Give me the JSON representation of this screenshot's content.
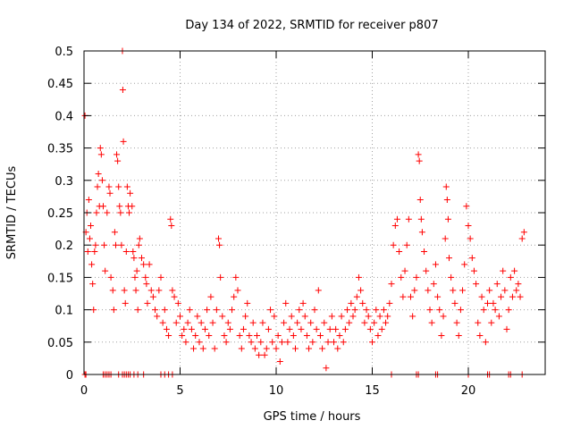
{
  "chart_data": {
    "type": "scatter",
    "title": "Day 134 of 2022, SRMTID for receiver p807",
    "xlabel": "GPS time / hours",
    "ylabel": "SRMTID / TECUs",
    "xlim": [
      0,
      24
    ],
    "ylim": [
      0,
      0.5
    ],
    "x_ticks": [
      0,
      5,
      10,
      15,
      20
    ],
    "y_ticks": [
      0,
      0.05,
      0.1,
      0.15,
      0.2,
      0.25,
      0.3,
      0.35,
      0.4,
      0.45,
      0.5
    ],
    "x_tick_labels": [
      "0",
      "5",
      "10",
      "15",
      "20"
    ],
    "y_tick_labels": [
      "0",
      "0.05",
      "0.1",
      "0.15",
      "0.2",
      "0.25",
      "0.3",
      "0.35",
      "0.4",
      "0.45",
      "0.5"
    ],
    "grid": true,
    "marker": "+",
    "color": "#ff0000",
    "series": [
      {
        "name": "SRMTID",
        "points": [
          [
            0.05,
            0.4
          ],
          [
            0.1,
            0.22
          ],
          [
            0.15,
            0.25
          ],
          [
            0.2,
            0.19
          ],
          [
            0.25,
            0.27
          ],
          [
            0.3,
            0.21
          ],
          [
            0.35,
            0.23
          ],
          [
            0.4,
            0.17
          ],
          [
            0.45,
            0.14
          ],
          [
            0.5,
            0.1
          ],
          [
            0.55,
            0.19
          ],
          [
            0.6,
            0.2
          ],
          [
            0.65,
            0.25
          ],
          [
            0.7,
            0.29
          ],
          [
            0.75,
            0.31
          ],
          [
            0.8,
            0.26
          ],
          [
            0.85,
            0.35
          ],
          [
            0.9,
            0.34
          ],
          [
            0.95,
            0.3
          ],
          [
            1.0,
            0.26
          ],
          [
            1.05,
            0.2
          ],
          [
            1.1,
            0.16
          ],
          [
            1.2,
            0.25
          ],
          [
            1.3,
            0.29
          ],
          [
            1.35,
            0.28
          ],
          [
            1.4,
            0.15
          ],
          [
            1.5,
            0.13
          ],
          [
            1.55,
            0.1
          ],
          [
            1.6,
            0.22
          ],
          [
            1.65,
            0.2
          ],
          [
            1.7,
            0.34
          ],
          [
            1.75,
            0.33
          ],
          [
            1.8,
            0.29
          ],
          [
            1.85,
            0.26
          ],
          [
            1.9,
            0.25
          ],
          [
            1.95,
            0.2
          ],
          [
            2.0,
            0.5
          ],
          [
            2.02,
            0.44
          ],
          [
            2.05,
            0.36
          ],
          [
            2.1,
            0.13
          ],
          [
            2.15,
            0.11
          ],
          [
            2.2,
            0.19
          ],
          [
            2.25,
            0.29
          ],
          [
            2.3,
            0.26
          ],
          [
            2.35,
            0.25
          ],
          [
            2.4,
            0.28
          ],
          [
            2.5,
            0.26
          ],
          [
            2.55,
            0.19
          ],
          [
            2.6,
            0.18
          ],
          [
            2.65,
            0.15
          ],
          [
            2.7,
            0.13
          ],
          [
            2.75,
            0.16
          ],
          [
            2.8,
            0.1
          ],
          [
            2.85,
            0.2
          ],
          [
            2.9,
            0.21
          ],
          [
            3.0,
            0.18
          ],
          [
            3.1,
            0.17
          ],
          [
            3.2,
            0.15
          ],
          [
            3.25,
            0.14
          ],
          [
            3.3,
            0.11
          ],
          [
            3.4,
            0.17
          ],
          [
            3.5,
            0.13
          ],
          [
            3.6,
            0.12
          ],
          [
            3.7,
            0.1
          ],
          [
            3.8,
            0.09
          ],
          [
            3.9,
            0.13
          ],
          [
            4.0,
            0.15
          ],
          [
            4.1,
            0.08
          ],
          [
            4.2,
            0.1
          ],
          [
            4.3,
            0.07
          ],
          [
            4.4,
            0.06
          ],
          [
            4.5,
            0.24
          ],
          [
            4.55,
            0.23
          ],
          [
            4.6,
            0.13
          ],
          [
            4.7,
            0.12
          ],
          [
            4.8,
            0.08
          ],
          [
            4.9,
            0.11
          ],
          [
            5.0,
            0.09
          ],
          [
            5.1,
            0.06
          ],
          [
            5.2,
            0.07
          ],
          [
            5.3,
            0.05
          ],
          [
            5.4,
            0.08
          ],
          [
            5.5,
            0.1
          ],
          [
            5.6,
            0.07
          ],
          [
            5.7,
            0.04
          ],
          [
            5.8,
            0.06
          ],
          [
            5.9,
            0.09
          ],
          [
            6.0,
            0.05
          ],
          [
            6.1,
            0.08
          ],
          [
            6.2,
            0.04
          ],
          [
            6.3,
            0.07
          ],
          [
            6.4,
            0.1
          ],
          [
            6.5,
            0.06
          ],
          [
            6.6,
            0.12
          ],
          [
            6.7,
            0.08
          ],
          [
            6.8,
            0.04
          ],
          [
            6.9,
            0.1
          ],
          [
            7.0,
            0.21
          ],
          [
            7.05,
            0.2
          ],
          [
            7.1,
            0.15
          ],
          [
            7.2,
            0.09
          ],
          [
            7.3,
            0.06
          ],
          [
            7.4,
            0.05
          ],
          [
            7.5,
            0.08
          ],
          [
            7.6,
            0.07
          ],
          [
            7.7,
            0.1
          ],
          [
            7.8,
            0.12
          ],
          [
            7.9,
            0.15
          ],
          [
            8.0,
            0.13
          ],
          [
            8.1,
            0.06
          ],
          [
            8.2,
            0.04
          ],
          [
            8.3,
            0.07
          ],
          [
            8.4,
            0.09
          ],
          [
            8.5,
            0.11
          ],
          [
            8.6,
            0.06
          ],
          [
            8.7,
            0.05
          ],
          [
            8.8,
            0.08
          ],
          [
            8.9,
            0.04
          ],
          [
            9.0,
            0.06
          ],
          [
            9.1,
            0.03
          ],
          [
            9.2,
            0.05
          ],
          [
            9.3,
            0.08
          ],
          [
            9.4,
            0.03
          ],
          [
            9.5,
            0.04
          ],
          [
            9.6,
            0.07
          ],
          [
            9.7,
            0.1
          ],
          [
            9.8,
            0.05
          ],
          [
            9.9,
            0.09
          ],
          [
            10.0,
            0.04
          ],
          [
            10.1,
            0.06
          ],
          [
            10.2,
            0.02
          ],
          [
            10.3,
            0.05
          ],
          [
            10.4,
            0.08
          ],
          [
            10.5,
            0.11
          ],
          [
            10.6,
            0.05
          ],
          [
            10.7,
            0.07
          ],
          [
            10.8,
            0.09
          ],
          [
            10.9,
            0.06
          ],
          [
            11.0,
            0.04
          ],
          [
            11.1,
            0.08
          ],
          [
            11.2,
            0.1
          ],
          [
            11.3,
            0.07
          ],
          [
            11.4,
            0.11
          ],
          [
            11.5,
            0.09
          ],
          [
            11.6,
            0.06
          ],
          [
            11.7,
            0.04
          ],
          [
            11.8,
            0.08
          ],
          [
            11.9,
            0.05
          ],
          [
            12.0,
            0.1
          ],
          [
            12.1,
            0.07
          ],
          [
            12.2,
            0.13
          ],
          [
            12.3,
            0.06
          ],
          [
            12.4,
            0.04
          ],
          [
            12.5,
            0.08
          ],
          [
            12.6,
            0.01
          ],
          [
            12.7,
            0.05
          ],
          [
            12.8,
            0.07
          ],
          [
            12.9,
            0.09
          ],
          [
            13.0,
            0.05
          ],
          [
            13.1,
            0.07
          ],
          [
            13.2,
            0.04
          ],
          [
            13.3,
            0.06
          ],
          [
            13.4,
            0.09
          ],
          [
            13.5,
            0.05
          ],
          [
            13.6,
            0.07
          ],
          [
            13.7,
            0.1
          ],
          [
            13.8,
            0.08
          ],
          [
            13.9,
            0.11
          ],
          [
            14.0,
            0.09
          ],
          [
            14.1,
            0.1
          ],
          [
            14.2,
            0.12
          ],
          [
            14.3,
            0.15
          ],
          [
            14.4,
            0.13
          ],
          [
            14.5,
            0.11
          ],
          [
            14.6,
            0.08
          ],
          [
            14.7,
            0.1
          ],
          [
            14.8,
            0.09
          ],
          [
            14.9,
            0.07
          ],
          [
            15.0,
            0.05
          ],
          [
            15.1,
            0.08
          ],
          [
            15.2,
            0.1
          ],
          [
            15.3,
            0.06
          ],
          [
            15.4,
            0.09
          ],
          [
            15.5,
            0.07
          ],
          [
            15.6,
            0.1
          ],
          [
            15.7,
            0.08
          ],
          [
            15.8,
            0.09
          ],
          [
            15.9,
            0.11
          ],
          [
            16.0,
            0.14
          ],
          [
            16.1,
            0.2
          ],
          [
            16.2,
            0.23
          ],
          [
            16.3,
            0.24
          ],
          [
            16.4,
            0.19
          ],
          [
            16.5,
            0.15
          ],
          [
            16.6,
            0.12
          ],
          [
            16.7,
            0.16
          ],
          [
            16.8,
            0.2
          ],
          [
            16.9,
            0.24
          ],
          [
            17.0,
            0.12
          ],
          [
            17.1,
            0.09
          ],
          [
            17.2,
            0.13
          ],
          [
            17.3,
            0.15
          ],
          [
            17.4,
            0.34
          ],
          [
            17.45,
            0.33
          ],
          [
            17.5,
            0.27
          ],
          [
            17.55,
            0.24
          ],
          [
            17.6,
            0.22
          ],
          [
            17.7,
            0.19
          ],
          [
            17.8,
            0.16
          ],
          [
            17.9,
            0.13
          ],
          [
            18.0,
            0.1
          ],
          [
            18.1,
            0.08
          ],
          [
            18.2,
            0.14
          ],
          [
            18.3,
            0.17
          ],
          [
            18.4,
            0.12
          ],
          [
            18.5,
            0.1
          ],
          [
            18.6,
            0.06
          ],
          [
            18.7,
            0.09
          ],
          [
            18.8,
            0.21
          ],
          [
            18.85,
            0.29
          ],
          [
            18.9,
            0.27
          ],
          [
            18.95,
            0.24
          ],
          [
            19.0,
            0.18
          ],
          [
            19.1,
            0.15
          ],
          [
            19.2,
            0.13
          ],
          [
            19.3,
            0.11
          ],
          [
            19.4,
            0.08
          ],
          [
            19.5,
            0.06
          ],
          [
            19.6,
            0.1
          ],
          [
            19.7,
            0.13
          ],
          [
            19.8,
            0.17
          ],
          [
            19.9,
            0.26
          ],
          [
            20.0,
            0.23
          ],
          [
            20.1,
            0.21
          ],
          [
            20.2,
            0.18
          ],
          [
            20.3,
            0.16
          ],
          [
            20.4,
            0.14
          ],
          [
            20.5,
            0.08
          ],
          [
            20.6,
            0.06
          ],
          [
            20.7,
            0.12
          ],
          [
            20.8,
            0.1
          ],
          [
            20.9,
            0.05
          ],
          [
            21.0,
            0.11
          ],
          [
            21.1,
            0.13
          ],
          [
            21.2,
            0.08
          ],
          [
            21.3,
            0.11
          ],
          [
            21.4,
            0.1
          ],
          [
            21.5,
            0.14
          ],
          [
            21.6,
            0.09
          ],
          [
            21.7,
            0.12
          ],
          [
            21.8,
            0.16
          ],
          [
            21.9,
            0.13
          ],
          [
            22.0,
            0.07
          ],
          [
            22.1,
            0.1
          ],
          [
            22.2,
            0.15
          ],
          [
            22.3,
            0.12
          ],
          [
            22.4,
            0.16
          ],
          [
            22.5,
            0.13
          ],
          [
            22.6,
            0.14
          ],
          [
            22.7,
            0.12
          ],
          [
            22.8,
            0.21
          ],
          [
            22.9,
            0.22
          ],
          [
            0.05,
            0.0
          ],
          [
            0.1,
            0.0
          ],
          [
            1.0,
            0.0
          ],
          [
            1.1,
            0.0
          ],
          [
            1.2,
            0.0
          ],
          [
            1.3,
            0.0
          ],
          [
            1.4,
            0.0
          ],
          [
            1.8,
            0.0
          ],
          [
            2.0,
            0.0
          ],
          [
            2.1,
            0.0
          ],
          [
            2.2,
            0.0
          ],
          [
            2.3,
            0.0
          ],
          [
            2.4,
            0.0
          ],
          [
            2.6,
            0.0
          ],
          [
            2.8,
            0.0
          ],
          [
            3.1,
            0.0
          ],
          [
            4.0,
            0.0
          ],
          [
            4.2,
            0.0
          ],
          [
            4.4,
            0.0
          ],
          [
            4.6,
            0.0
          ],
          [
            16.0,
            0.0
          ],
          [
            17.3,
            0.0
          ],
          [
            17.4,
            0.0
          ],
          [
            18.3,
            0.0
          ],
          [
            18.4,
            0.0
          ],
          [
            20.0,
            0.0
          ],
          [
            21.0,
            0.0
          ],
          [
            21.1,
            0.0
          ],
          [
            22.1,
            0.0
          ],
          [
            22.2,
            0.0
          ],
          [
            22.8,
            0.0
          ]
        ]
      }
    ]
  }
}
